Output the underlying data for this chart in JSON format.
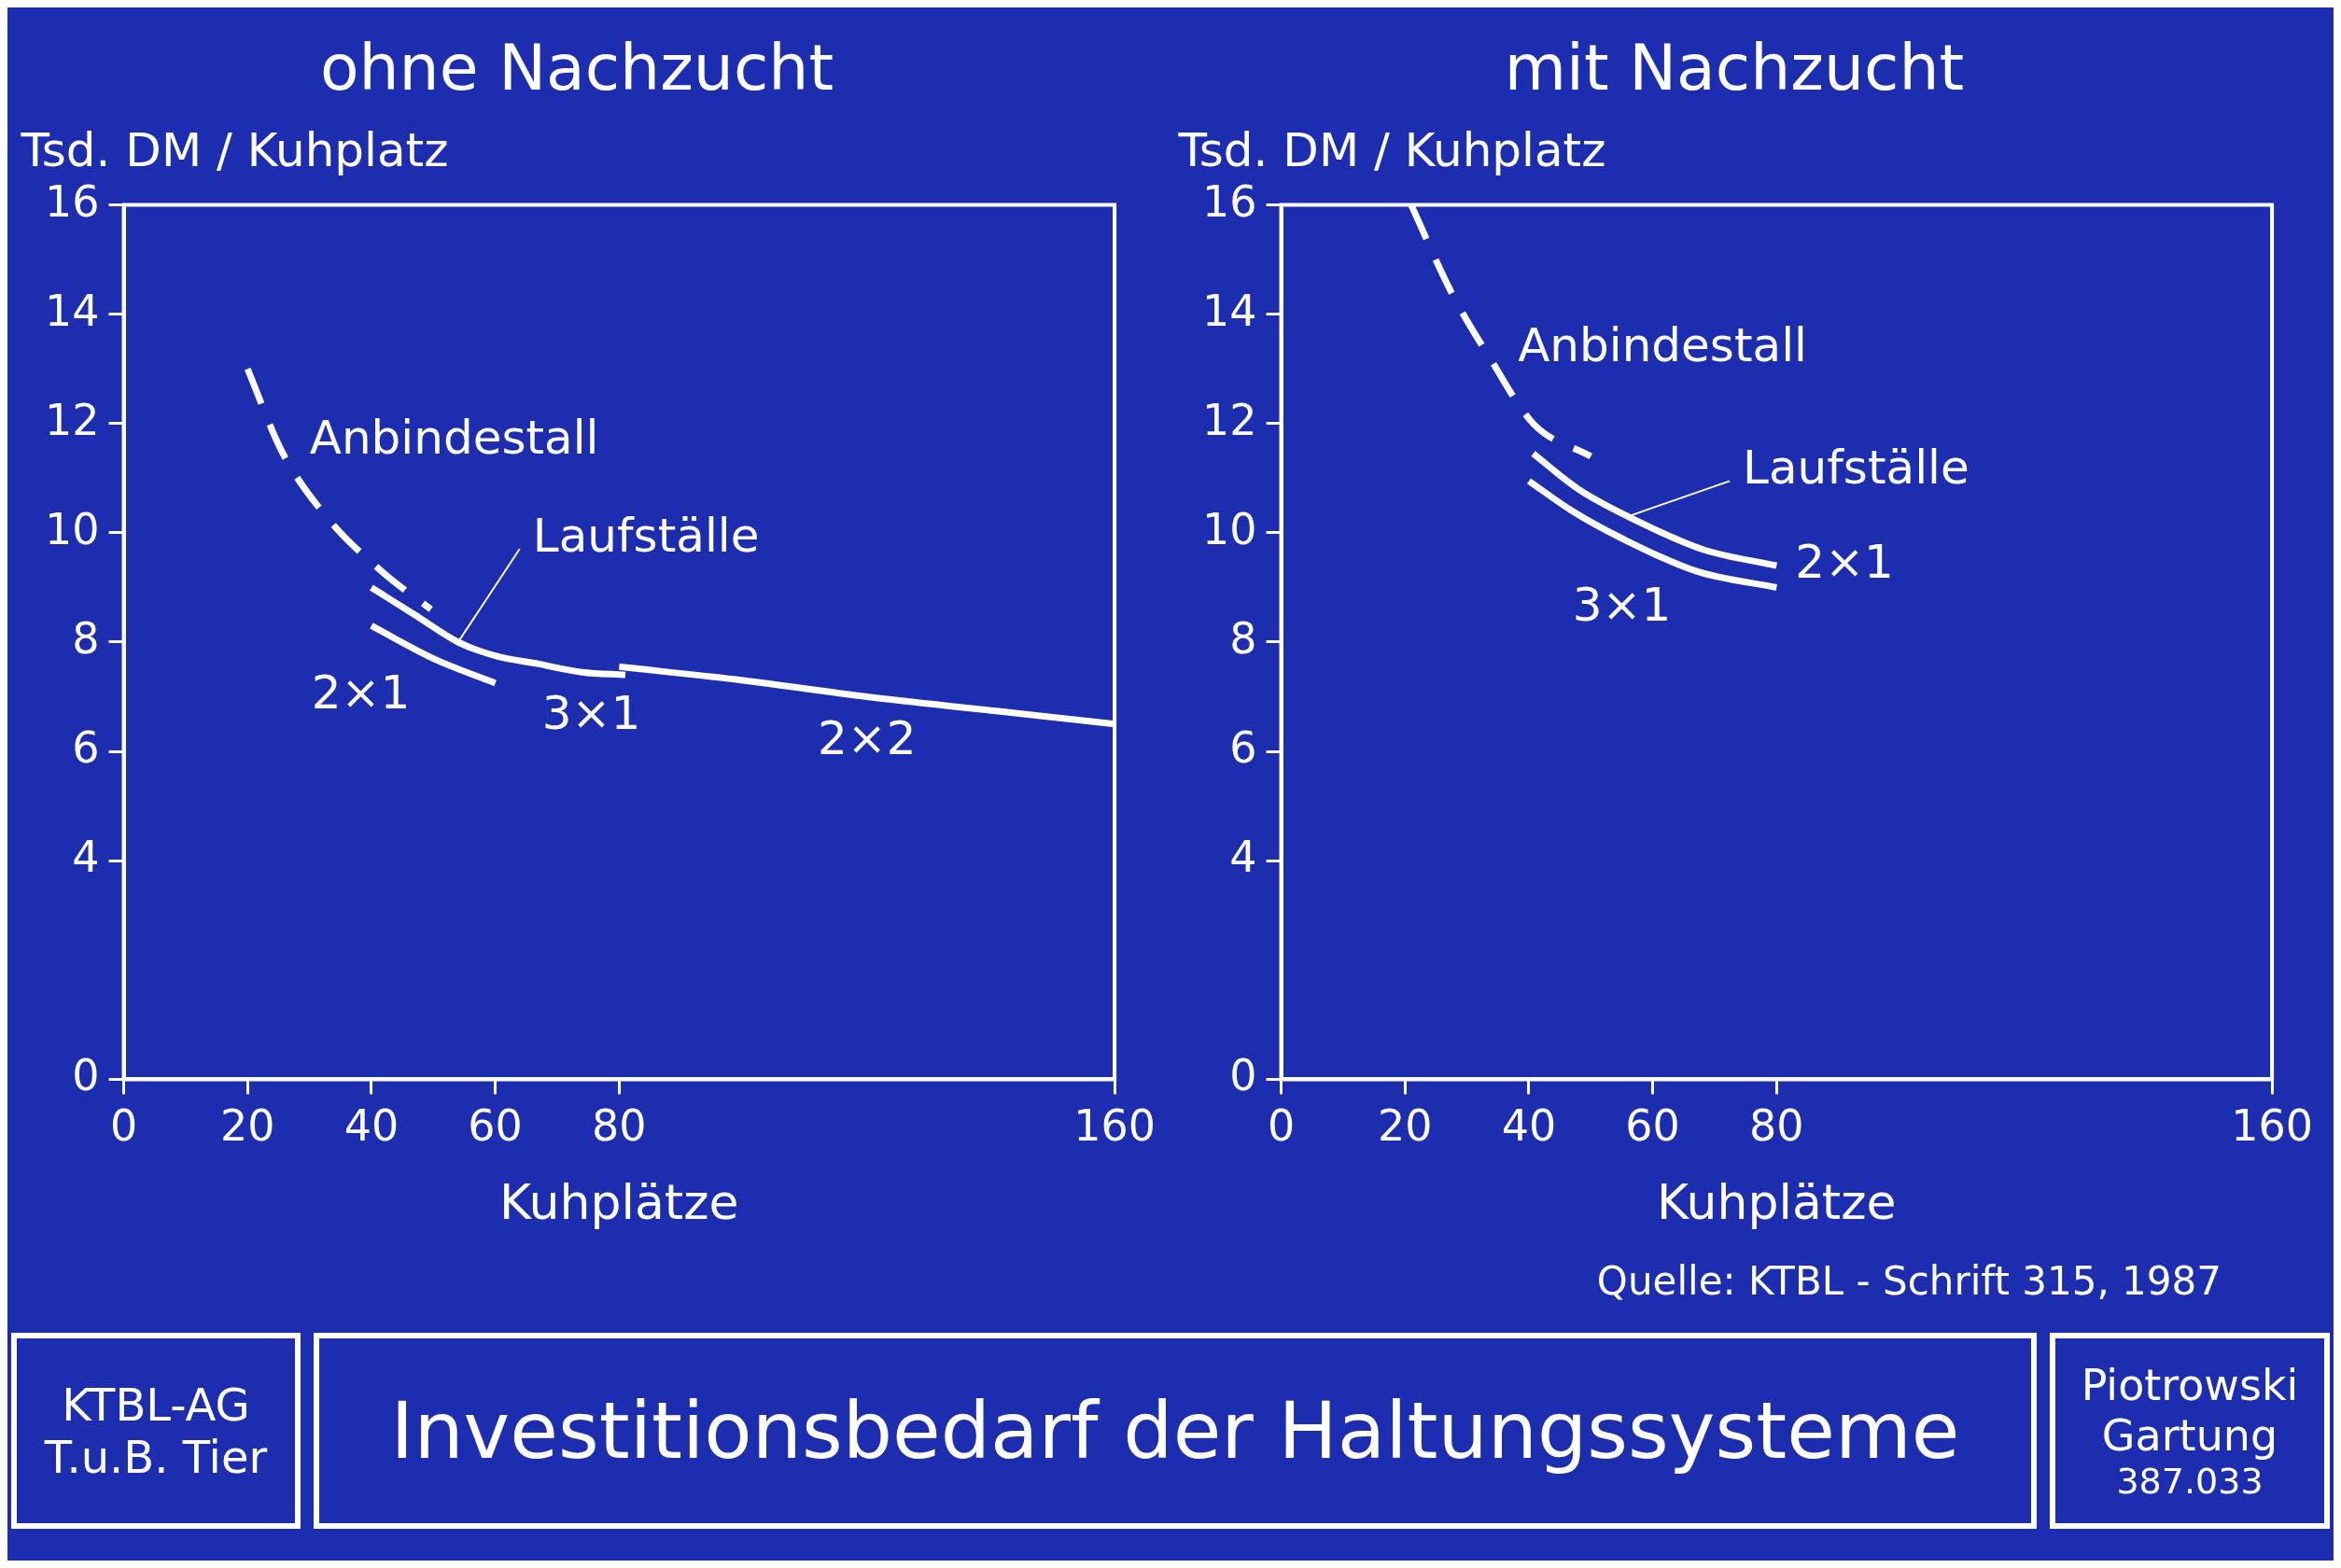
{
  "chart_data": [
    {
      "type": "line",
      "title": "ohne Nachzucht",
      "xlabel": "Kuhplätze",
      "ylabel": "Tsd. DM / Kuhplatz",
      "xlim": [
        0,
        160
      ],
      "ylim": [
        0,
        16
      ],
      "xticks": [
        0,
        20,
        40,
        60,
        80,
        160
      ],
      "yticks": [
        0,
        4,
        6,
        8,
        10,
        12,
        14,
        16
      ],
      "legend": false,
      "marker": "none",
      "series": [
        {
          "name": "Anbindestall",
          "color": "#ffffff",
          "line_style": "dashed",
          "x": [
            20,
            25.5,
            32.7,
            41.6,
            49.6
          ],
          "values": [
            13.0,
            11.5,
            10.3,
            9.3,
            8.6
          ]
        },
        {
          "name": "2×1",
          "color": "#ffffff",
          "line_style": "solid",
          "x": [
            40,
            50,
            60
          ],
          "values": [
            8.3,
            7.7,
            7.25
          ]
        },
        {
          "name": "3×1",
          "color": "#ffffff",
          "line_style": "solid",
          "x": [
            40,
            47,
            54,
            60,
            67,
            74,
            81
          ],
          "values": [
            9.0,
            8.5,
            8.0,
            7.75,
            7.6,
            7.45,
            7.4
          ]
        },
        {
          "name": "2×2",
          "color": "#ffffff",
          "line_style": "solid",
          "x": [
            80,
            100,
            120,
            140,
            160
          ],
          "values": [
            7.55,
            7.3,
            7.0,
            6.75,
            6.5
          ]
        }
      ],
      "annotations": [
        {
          "text": "Laufställe",
          "x": 54,
          "y": 8.0
        }
      ]
    },
    {
      "type": "line",
      "title": "mit Nachzucht",
      "xlabel": "Kuhplätze",
      "ylabel": "Tsd. DM / Kuhplatz",
      "xlim": [
        0,
        160
      ],
      "ylim": [
        0,
        16
      ],
      "xticks": [
        0,
        20,
        40,
        60,
        80,
        160
      ],
      "yticks": [
        0,
        4,
        6,
        8,
        10,
        12,
        14,
        16
      ],
      "legend": false,
      "marker": "none",
      "series": [
        {
          "name": "Anbindestall",
          "color": "#ffffff",
          "line_style": "dashed",
          "x": [
            21,
            27.5,
            33.7,
            40.7,
            50
          ],
          "values": [
            16.0,
            14.4,
            13.2,
            12.0,
            11.4
          ]
        },
        {
          "name": "2×1",
          "color": "#ffffff",
          "line_style": "solid",
          "x": [
            40.7,
            48,
            56,
            68,
            80
          ],
          "values": [
            11.45,
            10.8,
            10.3,
            9.7,
            9.4
          ]
        },
        {
          "name": "3×1",
          "color": "#ffffff",
          "line_style": "solid",
          "x": [
            40,
            47,
            55,
            67,
            80
          ],
          "values": [
            10.95,
            10.4,
            9.9,
            9.3,
            9.0
          ]
        }
      ],
      "annotations": [
        {
          "text": "Laufställe",
          "x": 56,
          "y": 10.3
        },
        "Quelle: KTBL - Schrift 315, 1987"
      ]
    },
    {
      "type": "other",
      "title": "Investitionsbedarf der Haltungssysteme",
      "annotations": [
        "KTBL-AG",
        "T.u.B. Tier",
        "Piotrowski",
        "Gartung",
        "387.033"
      ]
    }
  ]
}
